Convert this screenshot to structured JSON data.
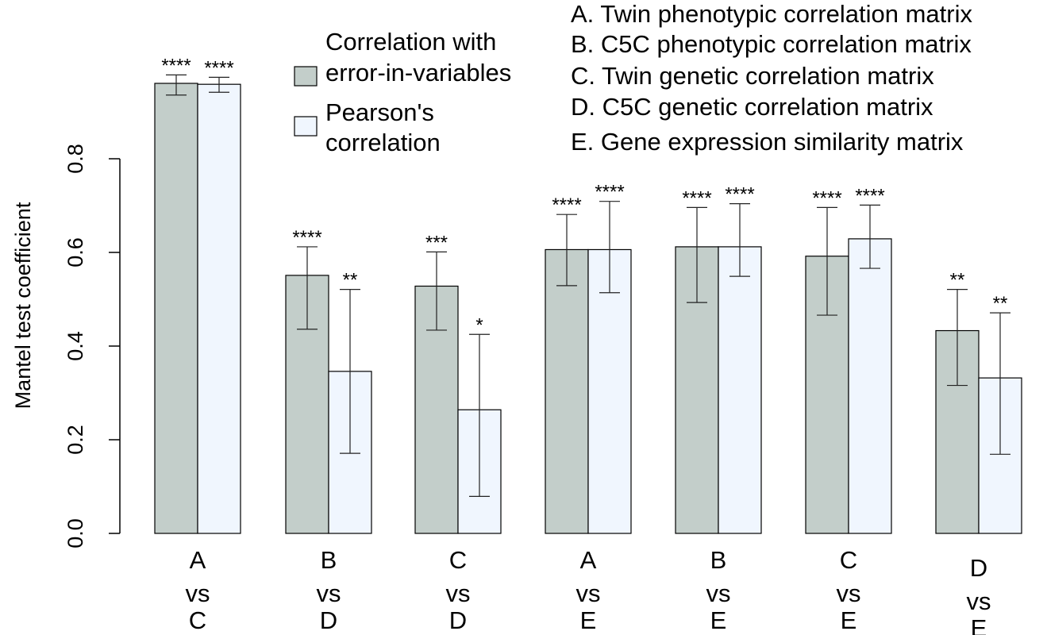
{
  "chart_data": {
    "type": "bar",
    "ylabel": "Mantel test coefficient",
    "ylim": [
      0,
      1.0
    ],
    "yticks": [
      "0.0",
      "0.2",
      "0.4",
      "0.6",
      "0.8"
    ],
    "yticks_values": [
      0,
      0.2,
      0.4,
      0.6,
      0.8
    ],
    "grid": false,
    "categories": [
      [
        "A",
        "vs",
        "C"
      ],
      [
        "B",
        "vs",
        "D"
      ],
      [
        "C",
        "vs",
        "D"
      ],
      [
        "A",
        "vs",
        "E"
      ],
      [
        "B",
        "vs",
        "E"
      ],
      [
        "C",
        "vs",
        "E"
      ],
      [
        "D",
        "vs",
        "E"
      ]
    ],
    "series": [
      {
        "name": "Correlation with error-in-variables",
        "legend_lines": [
          "Correlation with",
          "error-in-variables"
        ],
        "color": "#c3ceca",
        "values": [
          0.961,
          0.551,
          0.528,
          0.606,
          0.612,
          0.592,
          0.433
        ],
        "err_low": [
          0.936,
          0.436,
          0.434,
          0.529,
          0.493,
          0.466,
          0.316
        ],
        "err_high": [
          0.979,
          0.612,
          0.601,
          0.681,
          0.696,
          0.696,
          0.521
        ],
        "significance": [
          "****",
          "****",
          "***",
          "****",
          "****",
          "****",
          "**"
        ]
      },
      {
        "name": "Pearson's correlation",
        "legend_lines": [
          "Pearson's",
          "correlation"
        ],
        "color": "#f0f6fe",
        "values": [
          0.959,
          0.346,
          0.264,
          0.606,
          0.612,
          0.629,
          0.332
        ],
        "err_low": [
          0.942,
          0.171,
          0.079,
          0.514,
          0.549,
          0.566,
          0.169
        ],
        "err_high": [
          0.974,
          0.521,
          0.425,
          0.709,
          0.704,
          0.701,
          0.471
        ],
        "significance": [
          "****",
          "**",
          "*",
          "****",
          "****",
          "****",
          "**"
        ]
      }
    ],
    "legend_position": "top",
    "matrix_legend": [
      "A. Twin phenotypic correlation matrix",
      "B. C5C phenotypic correlation matrix",
      "C. Twin genetic correlation matrix",
      "D. C5C genetic correlation matrix",
      "E. Gene expression similarity matrix"
    ]
  }
}
